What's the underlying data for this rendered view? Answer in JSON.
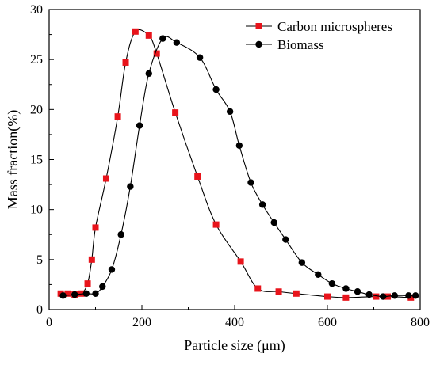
{
  "chart_data": {
    "type": "line",
    "title": "",
    "xlabel": "Particle size (μm)",
    "ylabel": "Mass fraction(%)",
    "xlim": [
      0,
      800
    ],
    "ylim": [
      0,
      30
    ],
    "xticks": [
      0,
      200,
      400,
      600,
      800
    ],
    "yticks": [
      0,
      5,
      10,
      15,
      20,
      25,
      30
    ],
    "grid": false,
    "legend_position": "top-right",
    "series": [
      {
        "name": "Carbon microspheres",
        "marker": "square",
        "color": "#e8141b",
        "x": [
          25,
          40,
          55,
          70,
          83,
          92,
          100,
          123,
          148,
          165,
          186,
          215,
          232,
          272,
          320,
          360,
          413,
          450,
          495,
          533,
          600,
          640,
          705,
          730,
          780
        ],
        "y": [
          1.6,
          1.6,
          1.5,
          1.6,
          2.6,
          5.0,
          8.2,
          13.1,
          19.3,
          24.7,
          27.8,
          27.4,
          25.6,
          19.7,
          13.3,
          8.5,
          4.8,
          2.1,
          1.8,
          1.6,
          1.3,
          1.2,
          1.3,
          1.3,
          1.2
        ]
      },
      {
        "name": "Biomass",
        "marker": "circle",
        "color": "#000000",
        "x": [
          30,
          55,
          80,
          100,
          115,
          135,
          155,
          175,
          195,
          215,
          245,
          275,
          325,
          360,
          390,
          410,
          435,
          460,
          485,
          510,
          545,
          580,
          610,
          640,
          665,
          690,
          720,
          745,
          775,
          790
        ],
        "y": [
          1.4,
          1.5,
          1.6,
          1.6,
          2.3,
          4.0,
          7.5,
          12.3,
          18.4,
          23.6,
          27.1,
          26.7,
          25.2,
          22.0,
          19.8,
          16.4,
          12.7,
          10.5,
          8.7,
          7.0,
          4.7,
          3.5,
          2.6,
          2.1,
          1.8,
          1.5,
          1.3,
          1.4,
          1.4,
          1.4
        ]
      }
    ]
  }
}
